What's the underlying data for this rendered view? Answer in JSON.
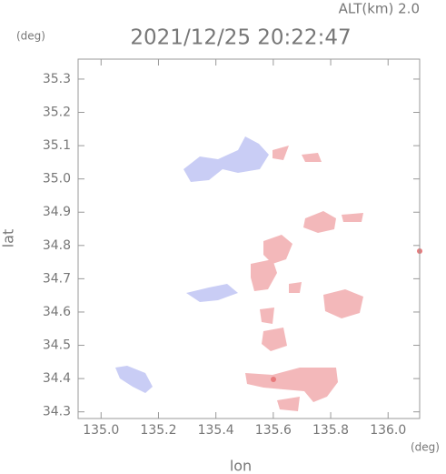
{
  "header": {
    "altitude": "ALT(km) 2.0",
    "timestamp": "2021/12/25 20:22:47"
  },
  "axes": {
    "x_label": "lon",
    "x_unit": "(deg)",
    "xlim": [
      134.92,
      136.11
    ],
    "xticks": [
      {
        "value": 135.0,
        "label": "135.0"
      },
      135.2,
      135.4,
      135.6,
      135.8,
      {
        "value": 136.0,
        "label": "136.0"
      }
    ],
    "y_label": "lat",
    "y_unit": "(deg)",
    "ylim": [
      34.28,
      35.36
    ],
    "yticks": [
      34.3,
      34.4,
      34.5,
      34.6,
      34.7,
      34.8,
      34.9,
      {
        "value": 35.0,
        "label": "35.0"
      },
      35.1,
      35.2,
      35.3
    ]
  }
}
